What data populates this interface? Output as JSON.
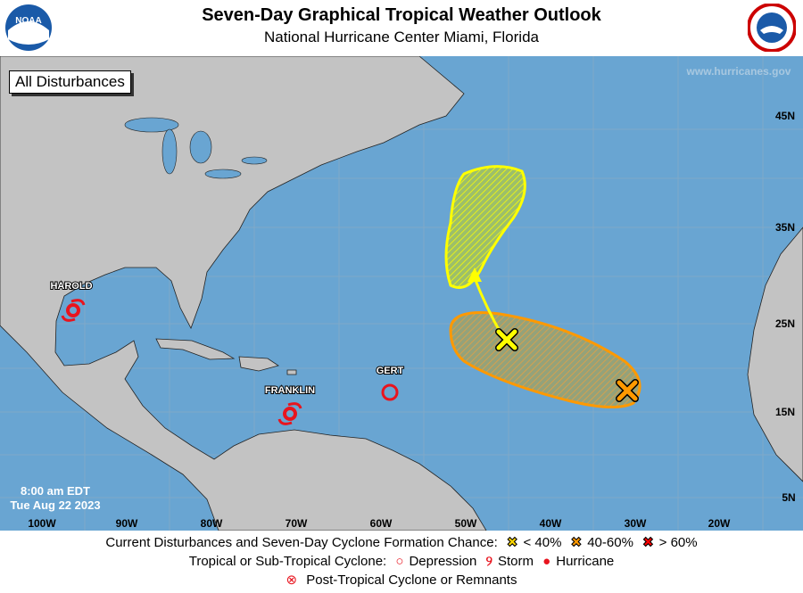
{
  "header": {
    "title": "Seven-Day Graphical Tropical Weather Outlook",
    "subtitle": "National Hurricane Center  Miami, Florida",
    "left_logo": "NOAA",
    "right_logo": "NATIONAL WEATHER SERVICE"
  },
  "map": {
    "view_label": "All Disturbances",
    "watermark": "www.hurricanes.gov",
    "timestamp_time": "8:00 am EDT",
    "timestamp_date": "Tue Aug 22 2023",
    "lon_labels": [
      "100W",
      "90W",
      "80W",
      "70W",
      "60W",
      "50W",
      "40W",
      "30W",
      "20W"
    ],
    "lat_labels": [
      "45N",
      "35N",
      "25N",
      "15N",
      "5N"
    ],
    "colors": {
      "ocean": "#69a5d2",
      "land": "#c3c3c3",
      "low": "#ffff00",
      "medium": "#ff9900",
      "high": "#ff0000",
      "cyclone": "#e8141e"
    },
    "cyclones": [
      {
        "name": "HAROLD",
        "type": "Storm"
      },
      {
        "name": "FRANKLIN",
        "type": "Storm"
      },
      {
        "name": "GERT",
        "type": "Depression"
      }
    ],
    "disturbances": [
      {
        "chance": "< 40%",
        "color": "#ffff00"
      },
      {
        "chance": "40-60%",
        "color": "#ff9900"
      }
    ]
  },
  "legend": {
    "row1_label": "Current Disturbances and Seven-Day Cyclone Formation Chance:",
    "low": "< 40%",
    "medium": "40-60%",
    "high": "> 60%",
    "row2_label": "Tropical or Sub-Tropical Cyclone:",
    "depression": "Depression",
    "storm": "Storm",
    "hurricane": "Hurricane",
    "post_tropical": "Post-Tropical Cyclone or Remnants"
  }
}
